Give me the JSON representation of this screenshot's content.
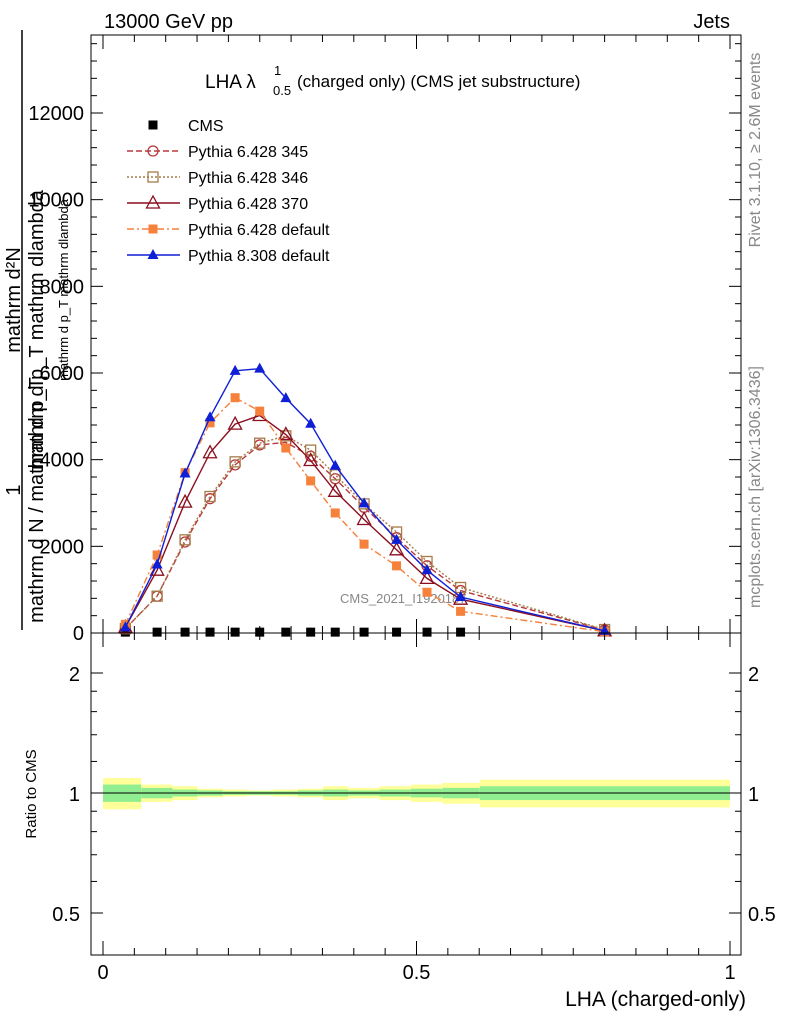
{
  "header": {
    "left": "13000 GeV pp",
    "right": "Jets",
    "side_top": "Rivet 3.1.10, ≥ 2.6M events",
    "side_bottom": "mcplots.cern.ch [arXiv:1306.3436]"
  },
  "chart_data": {
    "type": "line",
    "title_main": "LHA λ",
    "title_sup": "1",
    "title_sub": "0.5",
    "title_rest": " (charged only) (CMS jet substructure)",
    "watermark": "CMS_2021_I1920187",
    "ylabel_top_one": "1",
    "ylabel_top_num": "mathrm d²N",
    "ylabel_top_den": "mathrm d p_T mathrm dlambda",
    "ylabel_bot": "mathrm d N / mathrm d p_T",
    "ylabel_bot_frac": "mathrm d p_T mathrm dlambda",
    "xlabel": "LHA (charged-only)",
    "ratio_ylabel": "Ratio to CMS",
    "xlim": [
      0,
      1
    ],
    "ylim": [
      0,
      13800
    ],
    "ratio_ylim": [
      0.4,
      2.35
    ],
    "main_yticks": [
      0,
      2000,
      4000,
      6000,
      8000,
      10000,
      12000
    ],
    "main_ytick_labels": [
      "0",
      "2000",
      "4000",
      "6000",
      "8000",
      "10000",
      "12000"
    ],
    "xticks": [
      0,
      0.5,
      1
    ],
    "xtick_labels": [
      "0",
      "0.5",
      "1"
    ],
    "ratio_yticks": [
      0.5,
      1,
      2
    ],
    "ratio_ytick_labels": [
      "0.5",
      "1",
      "2"
    ],
    "legend_position": "top-left",
    "series": [
      {
        "name": "CMS",
        "color": "#000000",
        "marker": "square-filled",
        "dash": "",
        "x": [
          0.0357,
          0.0863,
          0.1309,
          0.1707,
          0.2107,
          0.2499,
          0.2916,
          0.3312,
          0.3704,
          0.4164,
          0.4682,
          0.5168,
          0.5703
        ],
        "y": [
          20,
          20,
          20,
          20,
          20,
          20,
          20,
          20,
          20,
          20,
          20,
          20,
          20
        ]
      },
      {
        "name": "Pythia 6.428 345",
        "color": "#b8383b",
        "marker": "circle-open",
        "dash": "6,3",
        "x": [
          0.0357,
          0.0863,
          0.1309,
          0.1707,
          0.2107,
          0.2499,
          0.2916,
          0.3312,
          0.3704,
          0.4164,
          0.4682,
          0.5168,
          0.5703,
          0.8
        ],
        "y": [
          100,
          850,
          2100,
          3100,
          3880,
          4340,
          4400,
          4080,
          3560,
          2900,
          2200,
          1550,
          980,
          70
        ]
      },
      {
        "name": "Pythia 6.428 346",
        "color": "#a57c4a",
        "marker": "square-open",
        "dash": "2,2",
        "x": [
          0.0357,
          0.0863,
          0.1309,
          0.1707,
          0.2107,
          0.2499,
          0.2916,
          0.3312,
          0.3704,
          0.4164,
          0.4682,
          0.5168,
          0.5703,
          0.8
        ],
        "y": [
          100,
          850,
          2150,
          3150,
          3950,
          4380,
          4550,
          4220,
          3650,
          2980,
          2330,
          1650,
          1050,
          80
        ]
      },
      {
        "name": "Pythia 6.428 370",
        "color": "#8b0f1f",
        "marker": "triangle-open",
        "dash": "",
        "x": [
          0.0357,
          0.0863,
          0.1309,
          0.1707,
          0.2107,
          0.2499,
          0.2916,
          0.3312,
          0.3704,
          0.4164,
          0.4682,
          0.5168,
          0.5703,
          0.8
        ],
        "y": [
          130,
          1450,
          3020,
          4160,
          4820,
          5020,
          4580,
          3980,
          3270,
          2620,
          1920,
          1260,
          780,
          50
        ]
      },
      {
        "name": "Pythia 6.428 default",
        "color": "#f5813b",
        "marker": "square-filled",
        "dash": "7,3,2,3",
        "x": [
          0.0357,
          0.0863,
          0.1309,
          0.1707,
          0.2107,
          0.2499,
          0.2916,
          0.3312,
          0.3704,
          0.4164,
          0.4682,
          0.5168,
          0.5703,
          0.8
        ],
        "y": [
          200,
          1800,
          3700,
          4850,
          5430,
          5120,
          4270,
          3510,
          2770,
          2050,
          1550,
          940,
          500,
          30
        ]
      },
      {
        "name": "Pythia 8.308 default",
        "color": "#0f1fd6",
        "marker": "triangle-filled",
        "dash": "",
        "x": [
          0.0357,
          0.0863,
          0.1309,
          0.1707,
          0.2107,
          0.2499,
          0.2916,
          0.3312,
          0.3704,
          0.4164,
          0.4682,
          0.5168,
          0.5703,
          0.8
        ],
        "y": [
          130,
          1580,
          3680,
          4980,
          6050,
          6100,
          5420,
          4830,
          3860,
          2990,
          2150,
          1450,
          830,
          50
        ]
      }
    ],
    "ratio_bands": {
      "edges": [
        0,
        0.061,
        0.111,
        0.151,
        0.191,
        0.231,
        0.271,
        0.311,
        0.351,
        0.391,
        0.441,
        0.491,
        0.541,
        0.601,
        1.0
      ],
      "inner_lo": [
        0.95,
        0.97,
        0.98,
        0.985,
        0.99,
        0.99,
        0.99,
        0.985,
        0.98,
        0.985,
        0.98,
        0.975,
        0.97,
        0.96
      ],
      "inner_hi": [
        1.05,
        1.03,
        1.02,
        1.015,
        1.01,
        1.01,
        1.01,
        1.015,
        1.02,
        1.015,
        1.02,
        1.025,
        1.03,
        1.04
      ],
      "outer_lo": [
        0.91,
        0.95,
        0.96,
        0.975,
        0.98,
        0.985,
        0.98,
        0.975,
        0.96,
        0.97,
        0.96,
        0.95,
        0.94,
        0.92
      ],
      "outer_hi": [
        1.09,
        1.05,
        1.04,
        1.025,
        1.02,
        1.015,
        1.02,
        1.025,
        1.04,
        1.03,
        1.04,
        1.05,
        1.06,
        1.08
      ],
      "inner_color": "#90ee90",
      "outer_color": "#ffff99"
    }
  }
}
